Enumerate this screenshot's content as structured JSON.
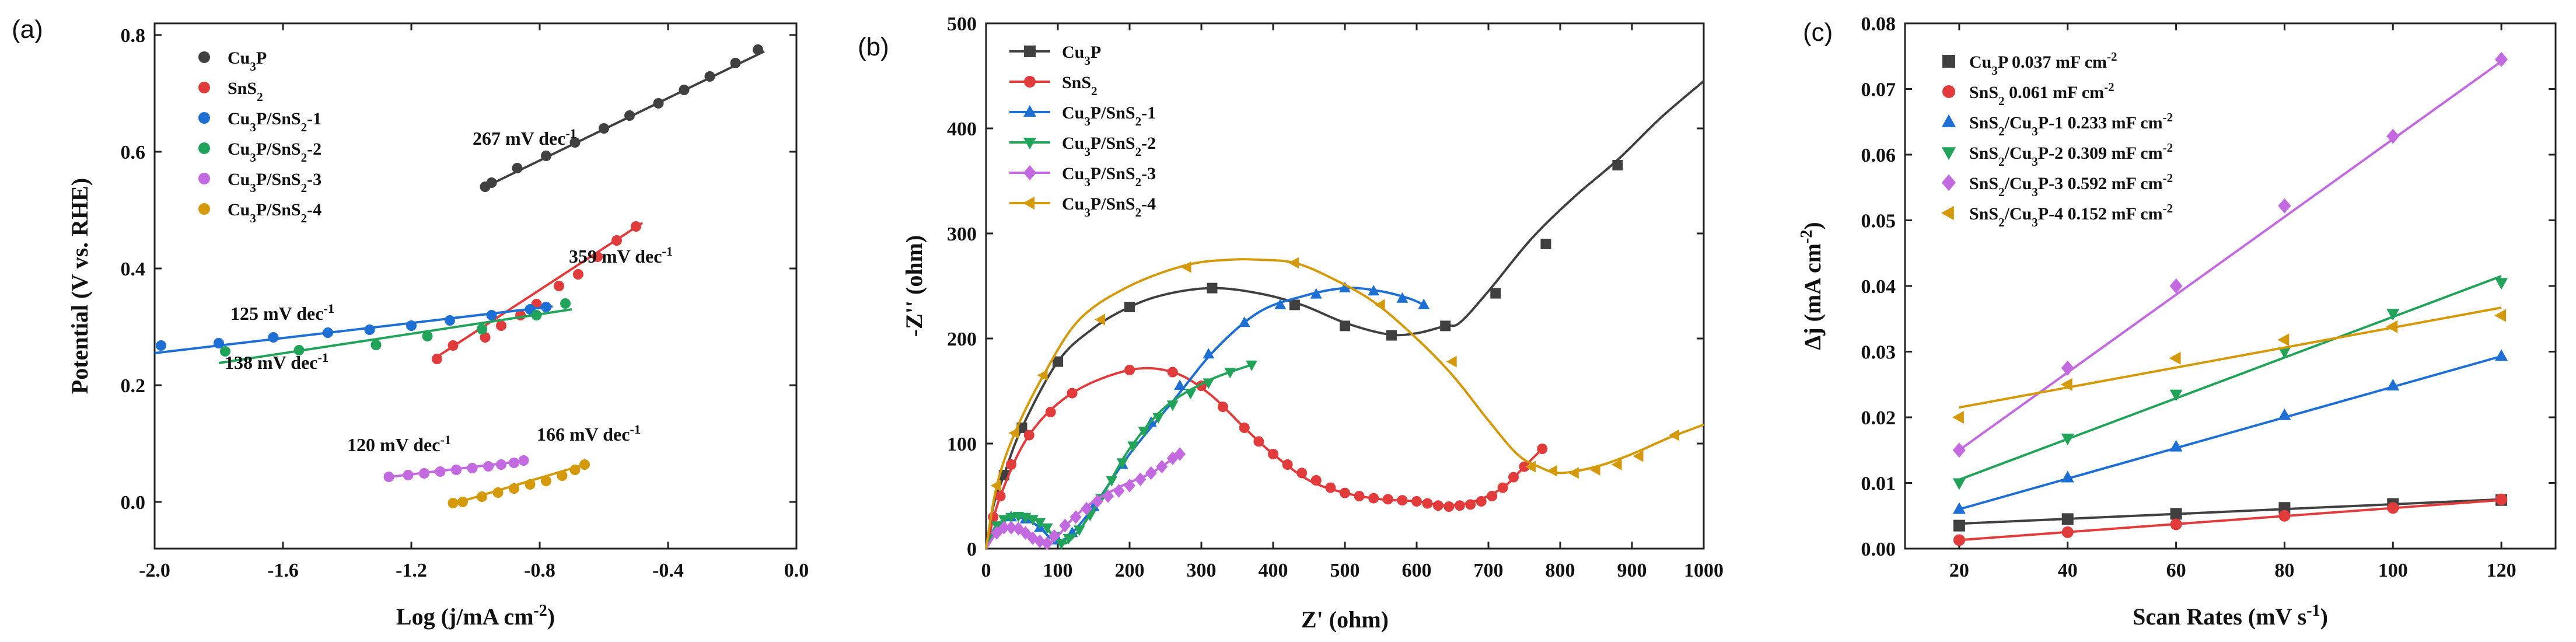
{
  "chart_data": [
    {
      "panel": "(a)",
      "type": "scatter",
      "title": "",
      "xlabel": "Log (j/mA cm-2)",
      "ylabel": "Potential (V vs. RHE)",
      "xlim": [
        -2.0,
        0.0
      ],
      "ylim": [
        -0.08,
        0.82
      ],
      "xticks": [
        -2.0,
        -1.6,
        -1.2,
        -0.8,
        -0.4,
        0.0
      ],
      "xtick_labels": [
        "-2.0",
        "-1.6",
        "-1.2",
        "-0.8",
        "-0.4",
        "0.0"
      ],
      "yticks": [
        0.0,
        0.2,
        0.4,
        0.6,
        0.8
      ],
      "ytick_labels": [
        "0.0",
        "0.2",
        "0.4",
        "0.6",
        "0.8"
      ],
      "legend_position": "top-left",
      "series": [
        {
          "name": "Cu3P",
          "color": "#404040",
          "marker": "circle",
          "x": [
            -0.97,
            -0.95,
            -0.87,
            -0.78,
            -0.69,
            -0.6,
            -0.52,
            -0.43,
            -0.35,
            -0.27,
            -0.19,
            -0.12
          ],
          "y": [
            0.54,
            0.547,
            0.572,
            0.593,
            0.616,
            0.64,
            0.662,
            0.683,
            0.706,
            0.729,
            0.752,
            0.775
          ],
          "fit_x": [
            -0.98,
            -0.1
          ],
          "fit_y": [
            0.537,
            0.772
          ]
        },
        {
          "name": "SnS2",
          "color": "#e23b3b",
          "marker": "circle",
          "x": [
            -1.12,
            -1.07,
            -0.97,
            -0.92,
            -0.86,
            -0.81,
            -0.74,
            -0.68,
            -0.62,
            -0.56,
            -0.5
          ],
          "y": [
            0.245,
            0.268,
            0.282,
            0.302,
            0.32,
            0.339,
            0.37,
            0.39,
            0.42,
            0.448,
            0.472
          ],
          "fit_x": [
            -1.13,
            -0.48
          ],
          "fit_y": [
            0.245,
            0.478
          ]
        },
        {
          "name": "Cu3P/SnS2-1",
          "color": "#1d6fd4",
          "marker": "circle",
          "x": [
            -1.98,
            -1.8,
            -1.63,
            -1.46,
            -1.33,
            -1.2,
            -1.08,
            -0.95,
            -0.83,
            -0.78
          ],
          "y": [
            0.268,
            0.272,
            0.282,
            0.29,
            0.295,
            0.302,
            0.311,
            0.32,
            0.33,
            0.334
          ],
          "fit_x": [
            -2.0,
            -0.76
          ],
          "fit_y": [
            0.255,
            0.335
          ]
        },
        {
          "name": "Cu3P/SnS2-2",
          "color": "#22a35a",
          "marker": "circle",
          "x": [
            -1.78,
            -1.55,
            -1.31,
            -1.15,
            -0.98,
            -0.81,
            -0.72
          ],
          "y": [
            0.258,
            0.26,
            0.269,
            0.284,
            0.296,
            0.32,
            0.34
          ],
          "fit_x": [
            -1.8,
            -0.7
          ],
          "fit_y": [
            0.238,
            0.33
          ]
        },
        {
          "name": "Cu3P/SnS2-3",
          "color": "#c36ae0",
          "marker": "circle",
          "x": [
            -1.27,
            -1.21,
            -1.16,
            -1.11,
            -1.06,
            -1.01,
            -0.96,
            -0.92,
            -0.88,
            -0.85
          ],
          "y": [
            0.043,
            0.046,
            0.049,
            0.052,
            0.055,
            0.058,
            0.061,
            0.064,
            0.067,
            0.071
          ],
          "fit_x": [
            -1.28,
            -0.84
          ],
          "fit_y": [
            0.042,
            0.071
          ]
        },
        {
          "name": "Cu3P/SnS2-4",
          "color": "#d49a0c",
          "marker": "circle",
          "x": [
            -1.07,
            -1.04,
            -0.98,
            -0.93,
            -0.88,
            -0.83,
            -0.78,
            -0.73,
            -0.69,
            -0.66
          ],
          "y": [
            -0.002,
            0.0,
            0.009,
            0.016,
            0.023,
            0.03,
            0.036,
            0.045,
            0.055,
            0.064
          ],
          "fit_x": [
            -1.08,
            -0.66
          ],
          "fit_y": [
            -0.005,
            0.064
          ]
        }
      ],
      "annotations": [
        "267 mV dec-1",
        "359 mV dec-1",
        "125 mV dec-1",
        "138 mV dec-1",
        "120 mV dec-1",
        "166 mV dec-1"
      ]
    },
    {
      "panel": "(b)",
      "type": "line",
      "title": "",
      "xlabel": "Z' (ohm)",
      "ylabel": "-Z'' (ohm)",
      "xlim": [
        0,
        1000
      ],
      "ylim": [
        0,
        500
      ],
      "xticks": [
        0,
        100,
        200,
        300,
        400,
        500,
        600,
        700,
        800,
        900,
        1000
      ],
      "xtick_labels": [
        "0",
        "100",
        "200",
        "300",
        "400",
        "500",
        "600",
        "700",
        "800",
        "900",
        "1000"
      ],
      "yticks": [
        0,
        100,
        200,
        300,
        400,
        500
      ],
      "ytick_labels": [
        "0",
        "100",
        "200",
        "300",
        "400",
        "500"
      ],
      "legend_position": "top-left",
      "series": [
        {
          "name": "Cu3P",
          "color": "#404040",
          "marker": "square",
          "x": [
            0,
            10,
            25,
            50,
            100,
            150,
            200,
            250,
            315,
            380,
            440,
            500,
            560,
            600,
            640,
            660,
            700,
            760,
            820,
            880,
            940,
            1000
          ],
          "y": [
            0,
            40,
            70,
            115,
            178,
            210,
            230,
            242,
            248,
            243,
            232,
            215,
            204,
            205,
            212,
            215,
            245,
            295,
            335,
            370,
            410,
            445
          ],
          "marker_x": [
            25,
            50,
            100,
            200,
            315,
            430,
            500,
            565,
            640,
            710,
            780,
            880
          ],
          "marker_y": [
            70,
            115,
            178,
            230,
            248,
            232,
            212,
            203,
            212,
            243,
            290,
            365
          ]
        },
        {
          "name": "SnS2",
          "color": "#e23b3b",
          "marker": "circle",
          "x": [
            0,
            20,
            60,
            120,
            200,
            260,
            310,
            360,
            400,
            450,
            500,
            550,
            600,
            640,
            680,
            720,
            750,
            775
          ],
          "y": [
            0,
            50,
            108,
            148,
            170,
            168,
            148,
            115,
            90,
            65,
            53,
            47,
            45,
            41,
            45,
            58,
            78,
            95
          ],
          "marker_x": [
            10,
            20,
            35,
            60,
            90,
            120,
            200,
            260,
            300,
            330,
            360,
            380,
            400,
            420,
            440,
            460,
            480,
            500,
            520,
            540,
            560,
            580,
            600,
            615,
            630,
            645,
            660,
            675,
            690,
            705,
            720,
            735,
            750,
            775
          ],
          "marker_y": [
            30,
            50,
            80,
            108,
            130,
            148,
            170,
            168,
            155,
            135,
            115,
            102,
            90,
            80,
            72,
            65,
            58,
            53,
            50,
            48,
            47,
            46,
            45,
            43,
            41,
            40,
            41,
            42,
            45,
            50,
            58,
            68,
            78,
            95
          ]
        },
        {
          "name": "Cu3P/SnS2-1",
          "color": "#1d6fd4",
          "marker": "triangle",
          "x": [
            0,
            15,
            35,
            55,
            75,
            90,
            105,
            120,
            150,
            200,
            260,
            320,
            380,
            440,
            500,
            550,
            590,
            610
          ],
          "y": [
            0,
            20,
            30,
            28,
            20,
            10,
            8,
            15,
            40,
            90,
            140,
            190,
            225,
            240,
            248,
            245,
            238,
            232
          ],
          "marker_x": [
            15,
            35,
            55,
            75,
            100,
            120,
            150,
            190,
            230,
            270,
            310,
            360,
            410,
            460,
            500,
            540,
            580,
            610
          ],
          "marker_y": [
            20,
            30,
            28,
            20,
            8,
            15,
            40,
            80,
            120,
            155,
            185,
            215,
            232,
            242,
            248,
            245,
            238,
            232
          ]
        },
        {
          "name": "Cu3P/SnS2-2",
          "color": "#22a35a",
          "marker": "triangle-down",
          "x": [
            0,
            15,
            35,
            55,
            75,
            95,
            110,
            130,
            160,
            200,
            250,
            310,
            370
          ],
          "y": [
            0,
            22,
            30,
            30,
            25,
            12,
            5,
            18,
            48,
            95,
            135,
            160,
            175
          ],
          "marker_x": [
            15,
            25,
            35,
            45,
            55,
            65,
            75,
            85,
            95,
            105,
            115,
            130,
            145,
            160,
            175,
            190,
            205,
            220,
            240,
            260,
            285,
            310,
            340,
            370
          ],
          "marker_y": [
            22,
            28,
            30,
            31,
            30,
            28,
            25,
            20,
            12,
            5,
            10,
            18,
            32,
            48,
            65,
            82,
            98,
            112,
            125,
            137,
            148,
            158,
            168,
            175
          ]
        },
        {
          "name": "Cu3P/SnS2-3",
          "color": "#c36ae0",
          "marker": "diamond",
          "x": [
            0,
            15,
            30,
            50,
            70,
            85,
            100,
            120,
            150,
            190,
            230,
            270
          ],
          "y": [
            0,
            15,
            20,
            18,
            10,
            5,
            12,
            28,
            45,
            60,
            72,
            90
          ],
          "marker_x": [
            15,
            25,
            35,
            45,
            55,
            65,
            75,
            85,
            95,
            110,
            125,
            140,
            155,
            170,
            185,
            200,
            215,
            230,
            245,
            260,
            270
          ],
          "marker_y": [
            15,
            20,
            20,
            19,
            15,
            10,
            7,
            5,
            12,
            22,
            30,
            38,
            45,
            50,
            55,
            60,
            66,
            72,
            78,
            86,
            90
          ]
        },
        {
          "name": "Cu3P/SnS2-4",
          "color": "#d49a0c",
          "marker": "triangle-left",
          "x": [
            0,
            15,
            40,
            80,
            130,
            200,
            280,
            340,
            380,
            430,
            480,
            540,
            600,
            650,
            700,
            740,
            770,
            800,
            850,
            900,
            950,
            1000
          ],
          "y": [
            0,
            60,
            110,
            165,
            218,
            250,
            270,
            275,
            275,
            272,
            258,
            235,
            200,
            165,
            122,
            90,
            78,
            72,
            78,
            90,
            105,
            118
          ],
          "marker_x": [
            15,
            40,
            80,
            160,
            280,
            430,
            550,
            650,
            760,
            790,
            820,
            850,
            880,
            910,
            960
          ],
          "marker_y": [
            60,
            110,
            165,
            218,
            268,
            272,
            232,
            178,
            78,
            74,
            72,
            75,
            80,
            88,
            108
          ]
        }
      ]
    },
    {
      "panel": "(c)",
      "type": "scatter",
      "title": "",
      "xlabel": "Scan Rates (mV s-1)",
      "ylabel": "Δj (mA cm-2)",
      "xlim": [
        10,
        130
      ],
      "ylim": [
        0,
        0.08
      ],
      "xticks": [
        20,
        40,
        60,
        80,
        100,
        120
      ],
      "xtick_labels": [
        "20",
        "40",
        "60",
        "80",
        "100",
        "120"
      ],
      "yticks": [
        0.0,
        0.01,
        0.02,
        0.03,
        0.04,
        0.05,
        0.06,
        0.07,
        0.08
      ],
      "ytick_labels": [
        "0.00",
        "0.01",
        "0.02",
        "0.03",
        "0.04",
        "0.05",
        "0.06",
        "0.07",
        "0.08"
      ],
      "legend_position": "top-left",
      "series": [
        {
          "name": "Cu3P",
          "value_label": "0.037 mF cm-2",
          "color": "#404040",
          "marker": "square",
          "x": [
            20,
            40,
            60,
            80,
            100,
            120
          ],
          "y": [
            0.0035,
            0.0045,
            0.0053,
            0.0062,
            0.0068,
            0.0074
          ],
          "fit_y": [
            0.0038,
            0.0075
          ]
        },
        {
          "name": "SnS2",
          "value_label": "0.061 mF cm-2",
          "color": "#e23b3b",
          "marker": "circle",
          "x": [
            20,
            40,
            60,
            80,
            100,
            120
          ],
          "y": [
            0.0013,
            0.0025,
            0.0037,
            0.005,
            0.0062,
            0.0075
          ],
          "fit_y": [
            0.0013,
            0.0074
          ]
        },
        {
          "name": "SnS2/Cu3P-1",
          "value_label": "0.233 mF cm-2",
          "color": "#1d6fd4",
          "marker": "triangle",
          "x": [
            20,
            40,
            60,
            80,
            100,
            120
          ],
          "y": [
            0.006,
            0.0108,
            0.0155,
            0.0203,
            0.0248,
            0.0293
          ],
          "fit_y": [
            0.006,
            0.0293
          ]
        },
        {
          "name": "SnS2/Cu3P-2",
          "value_label": "0.309 mF cm-2",
          "color": "#22a35a",
          "marker": "triangle-down",
          "x": [
            20,
            40,
            60,
            80,
            100,
            120
          ],
          "y": [
            0.01,
            0.0168,
            0.0235,
            0.03,
            0.0358,
            0.0405
          ],
          "fit_y": [
            0.0105,
            0.0415
          ]
        },
        {
          "name": "SnS2/Cu3P-3",
          "value_label": "0.592 mF cm-2",
          "color": "#c36ae0",
          "marker": "diamond",
          "x": [
            20,
            40,
            60,
            80,
            100,
            120
          ],
          "y": [
            0.015,
            0.0275,
            0.04,
            0.0522,
            0.0628,
            0.0745
          ],
          "fit_y": [
            0.015,
            0.0742
          ]
        },
        {
          "name": "SnS2/Cu3P-4",
          "value_label": "0.152 mF cm-2",
          "color": "#d49a0c",
          "marker": "triangle-left",
          "x": [
            20,
            40,
            60,
            80,
            100,
            120
          ],
          "y": [
            0.02,
            0.025,
            0.029,
            0.0318,
            0.0338,
            0.0355
          ],
          "fit_y": [
            0.0215,
            0.0367
          ]
        }
      ]
    }
  ]
}
